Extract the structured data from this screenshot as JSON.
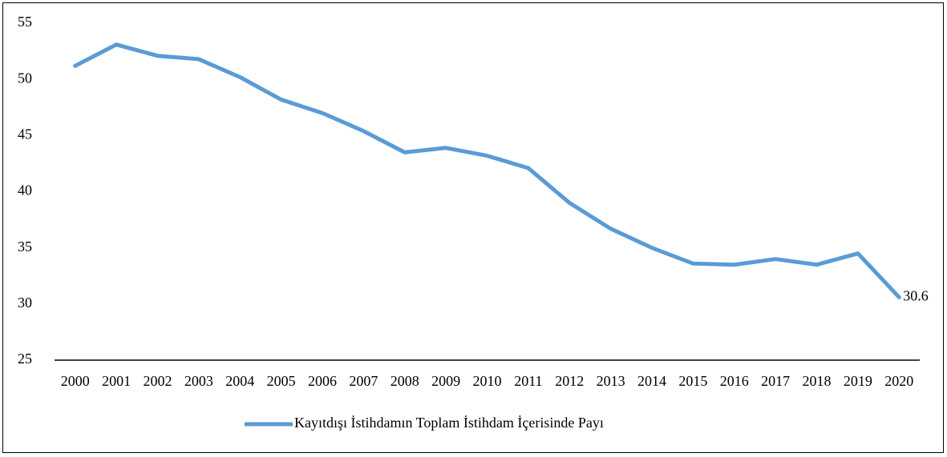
{
  "chart_data": {
    "type": "line",
    "categories": [
      "2000",
      "2001",
      "2002",
      "2003",
      "2004",
      "2005",
      "2006",
      "2007",
      "2008",
      "2009",
      "2010",
      "2011",
      "2012",
      "2013",
      "2014",
      "2015",
      "2016",
      "2017",
      "2018",
      "2019",
      "2020"
    ],
    "series": [
      {
        "name": "Kayıtdışı İstihdamın Toplam İstihdam İçerisinde Payı",
        "color": "#5b9bd5",
        "values": [
          51.2,
          53.1,
          52.1,
          51.8,
          50.2,
          48.2,
          47.0,
          45.4,
          43.5,
          43.9,
          43.2,
          42.1,
          39.0,
          36.7,
          35.0,
          33.6,
          33.5,
          34.0,
          33.5,
          34.5,
          30.6
        ]
      }
    ],
    "ylim": [
      25,
      55
    ],
    "yticks": [
      25,
      30,
      35,
      40,
      45,
      50,
      55
    ],
    "grid": false,
    "legend": "bottom"
  }
}
